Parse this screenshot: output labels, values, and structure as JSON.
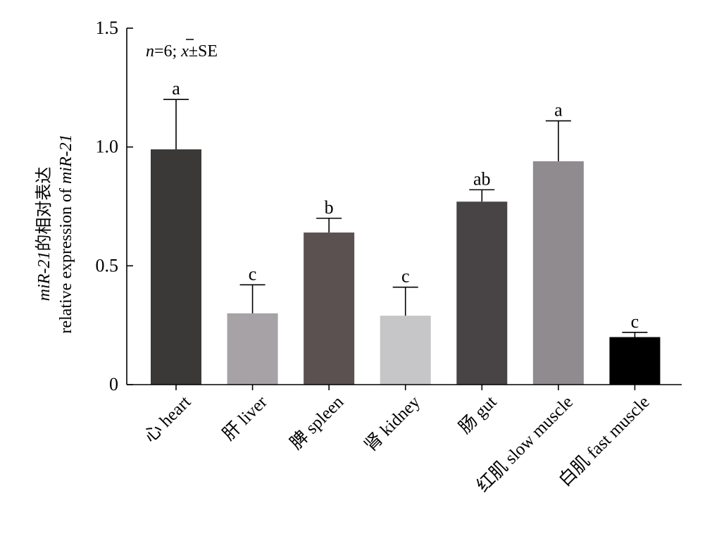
{
  "chart_data": {
    "type": "bar",
    "title": "",
    "annotation_prefix": "n",
    "annotation_mid": "=6; ",
    "annotation_xbar": "x",
    "annotation_suffix": "±SE",
    "ylabel_line1_italic": "miR-21",
    "ylabel_line1_rest": "的相对表达",
    "ylabel_line2_rest": "relative expression of ",
    "ylabel_line2_italic": "miR-21",
    "xlabel": "",
    "ylim": [
      0,
      1.5
    ],
    "yticks": [
      {
        "value": 0,
        "label": "0"
      },
      {
        "value": 0.5,
        "label": "0.5"
      },
      {
        "value": 1.0,
        "label": "1.0"
      },
      {
        "value": 1.5,
        "label": "1.5"
      }
    ],
    "categories": [
      "心 heart",
      "肝 liver",
      "脾 spleen",
      "肾 kidney",
      "肠 gut",
      "红肌 slow muscle",
      "白肌 fast muscle"
    ],
    "values": [
      0.99,
      0.3,
      0.64,
      0.29,
      0.77,
      0.94,
      0.2
    ],
    "errors": [
      0.21,
      0.12,
      0.06,
      0.12,
      0.05,
      0.17,
      0.02
    ],
    "significance": [
      "a",
      "c",
      "b",
      "c",
      "ab",
      "a",
      "c"
    ],
    "colors": [
      "#3b3838",
      "#a6a2a5",
      "#5a5150",
      "#c6c6c8",
      "#484445",
      "#8f8b8f",
      "#000000"
    ]
  }
}
